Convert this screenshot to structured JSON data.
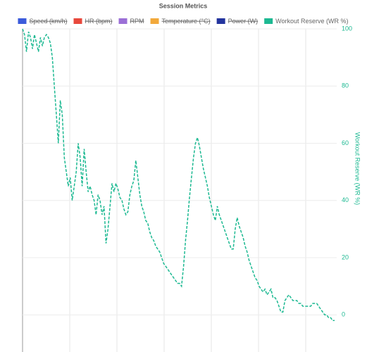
{
  "chart_data": {
    "type": "line",
    "title": "Session Metrics",
    "y_axis_title": "Workout Reserve (WR %)",
    "y_axis_position": "right",
    "ylim": [
      -12.5,
      100
    ],
    "yticks": [
      0,
      20,
      40,
      60,
      80,
      100
    ],
    "grid": true,
    "line_style": "dashed",
    "series": [
      {
        "name": "Speed (km/h)",
        "color": "#3b5bdb",
        "hidden": true
      },
      {
        "name": "HR (bpm)",
        "color": "#e8483c",
        "hidden": true
      },
      {
        "name": "RPM",
        "color": "#9b6fd6",
        "hidden": true
      },
      {
        "name": "Temperature (°C)",
        "color": "#f2a93b",
        "hidden": true
      },
      {
        "name": "Power (W)",
        "color": "#23349e",
        "hidden": true
      },
      {
        "name": "Workout Reserve (WR %)",
        "color": "#1db992",
        "hidden": false,
        "values": [
          100,
          98,
          92,
          99,
          97,
          93,
          98,
          95,
          92,
          97,
          94,
          97,
          98,
          97,
          95,
          90,
          80,
          70,
          60,
          75,
          70,
          55,
          50,
          45,
          48,
          40,
          45,
          50,
          60,
          55,
          45,
          58,
          50,
          43,
          45,
          42,
          40,
          35,
          42,
          40,
          35,
          38,
          25,
          30,
          38,
          46,
          43,
          46,
          44,
          41,
          40,
          37,
          35,
          36,
          42,
          45,
          47,
          54,
          48,
          42,
          38,
          36,
          33,
          32,
          29,
          27,
          26,
          24,
          23,
          22,
          20,
          18,
          17,
          16,
          15,
          14,
          13,
          12,
          11,
          11,
          10,
          17,
          26,
          33,
          41,
          48,
          55,
          60,
          62,
          59,
          55,
          51,
          48,
          45,
          41,
          38,
          35,
          33,
          38,
          35,
          33,
          31,
          29,
          27,
          25,
          23,
          23,
          30,
          34,
          31,
          29,
          27,
          24,
          22,
          19,
          17,
          15,
          13,
          12,
          10,
          9,
          8,
          9,
          7,
          8,
          9,
          6,
          6,
          5,
          3,
          1,
          1,
          5,
          6,
          7,
          6,
          5,
          5,
          5,
          4,
          4,
          3,
          3,
          3,
          3,
          3,
          4,
          4,
          4,
          3,
          2,
          1,
          0,
          0,
          -1,
          -1,
          -2,
          -2
        ]
      }
    ]
  }
}
